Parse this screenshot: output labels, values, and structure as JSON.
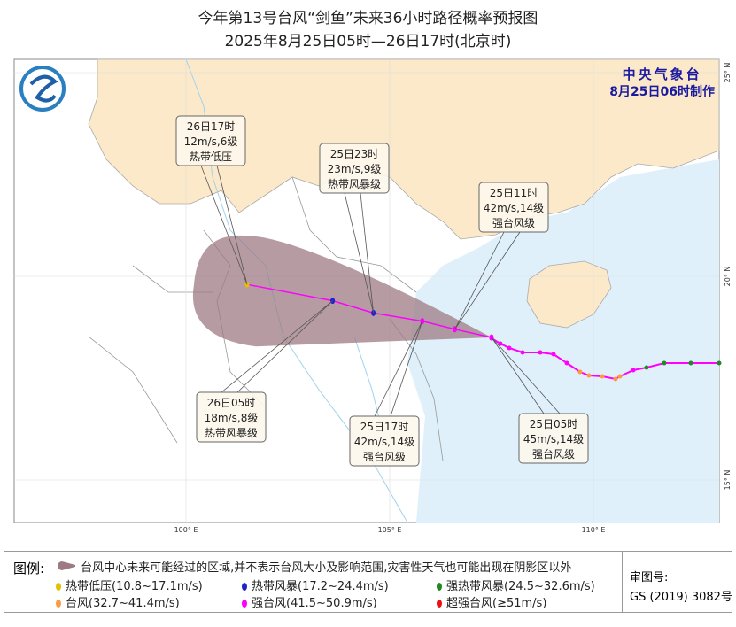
{
  "title": "今年第13号台风“剑鱼”未来36小时路径概率预报图",
  "subtitle": "2025年8月25日05时—26日17时(北京时)",
  "agency": {
    "name": "中央气象台",
    "made": "8月25日06时制作"
  },
  "axes": {
    "lon_ticks": [
      "100° E",
      "105° E",
      "110° E"
    ],
    "lat_ticks": [
      "25° N",
      "20° N",
      "15° N"
    ]
  },
  "colors": {
    "land_china": "#fce9c9",
    "land_other": "#ffffff",
    "sea": "#dff0fa",
    "cone": "#9d7b83",
    "track": "#ff00ff",
    "border": "#999999"
  },
  "forecast_points": [
    {
      "time": "25日05时",
      "wind": "45m/s,14级",
      "level": "强台风级",
      "lon": 107.5,
      "lat": 18.5,
      "color": "#ff00ff"
    },
    {
      "time": "25日11时",
      "wind": "42m/s,14级",
      "level": "强台风级",
      "lon": 106.6,
      "lat": 18.7,
      "color": "#ff00ff"
    },
    {
      "time": "25日17时",
      "wind": "42m/s,14级",
      "level": "强台风级",
      "lon": 105.8,
      "lat": 18.9,
      "color": "#ff00ff"
    },
    {
      "time": "25日23时",
      "wind": "23m/s,9级",
      "level": "热带风暴级",
      "lon": 104.6,
      "lat": 19.1,
      "color": "#2222cc"
    },
    {
      "time": "26日05时",
      "wind": "18m/s,8级",
      "level": "热带风暴级",
      "lon": 103.6,
      "lat": 19.4,
      "color": "#2222cc"
    },
    {
      "time": "26日17时",
      "wind": "12m/s,6级",
      "level": "热带低压",
      "lon": 101.5,
      "lat": 19.8,
      "color": "#e6c000"
    }
  ],
  "legend": {
    "label": "图例:",
    "cone": "台风中心未来可能经过的区域,并不表示台风大小及影响范围,灾害性天气也可能出现在阴影区以外",
    "items": [
      {
        "label": "热带低压(10.8~17.1m/s)",
        "color": "#e6c000"
      },
      {
        "label": "热带风暴(17.2~24.4m/s)",
        "color": "#2222cc"
      },
      {
        "label": "强热带风暴(24.5~32.6m/s)",
        "color": "#228822"
      },
      {
        "label": "台风(32.7~41.4m/s)",
        "color": "#ff9944"
      },
      {
        "label": "强台风(41.5~50.9m/s)",
        "color": "#ff00ff"
      },
      {
        "label": "超强台风(≥51m/s)",
        "color": "#ee1111"
      }
    ],
    "review_label": "审图号:",
    "review_no": "GS (2019) 3082号"
  }
}
